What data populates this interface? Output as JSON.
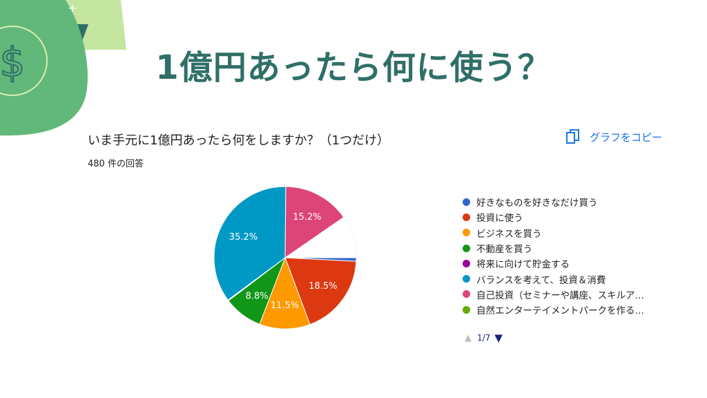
{
  "headline": "1億円あったら何に使う？",
  "question": "いま手元に1億円あったら何をしますか？（1つだけ）",
  "response_count": "480 件の回答",
  "copy_label": "グラフをコピー",
  "icons": {
    "copy": "copy-icon",
    "dollar": "dollar-coin-icon",
    "prev": "triangle-up-icon",
    "next": "triangle-down-icon"
  },
  "pager": {
    "prev": "▲",
    "page": "1/7",
    "next": "▼"
  },
  "colors": {
    "headline": "#2f6f68",
    "link": "#1a73e8"
  },
  "chart_data": {
    "type": "pie",
    "title": "",
    "slices": [
      {
        "label": "好きなものを好きなだけ買う",
        "value": 0.8,
        "color": "#3366cc"
      },
      {
        "label": "投資に使う",
        "value": 18.5,
        "color": "#dc3912",
        "data_label": "18.5%"
      },
      {
        "label": "ビジネスを買う",
        "value": 11.5,
        "color": "#ff9900",
        "data_label": "11.5%"
      },
      {
        "label": "不動産を買う",
        "value": 8.8,
        "color": "#109618",
        "data_label": "8.8%"
      },
      {
        "label": "将来に向けて貯金する",
        "value": 0.2,
        "color": "#990099"
      },
      {
        "label": "バランスを考えて、投資＆消費",
        "value": 35.2,
        "color": "#0099c6",
        "data_label": "35.2%"
      },
      {
        "label": "自己投資（セミナーや講座、スキルア…",
        "value": 15.2,
        "color": "#dd4477",
        "data_label": "15.2%"
      },
      {
        "label": "自然エンターテイメントパークを作る…",
        "value": 0.2,
        "color": "#66aa00"
      },
      {
        "label": "",
        "value": 9.4,
        "color": "#ffffff"
      }
    ],
    "legend_placement": "right"
  }
}
